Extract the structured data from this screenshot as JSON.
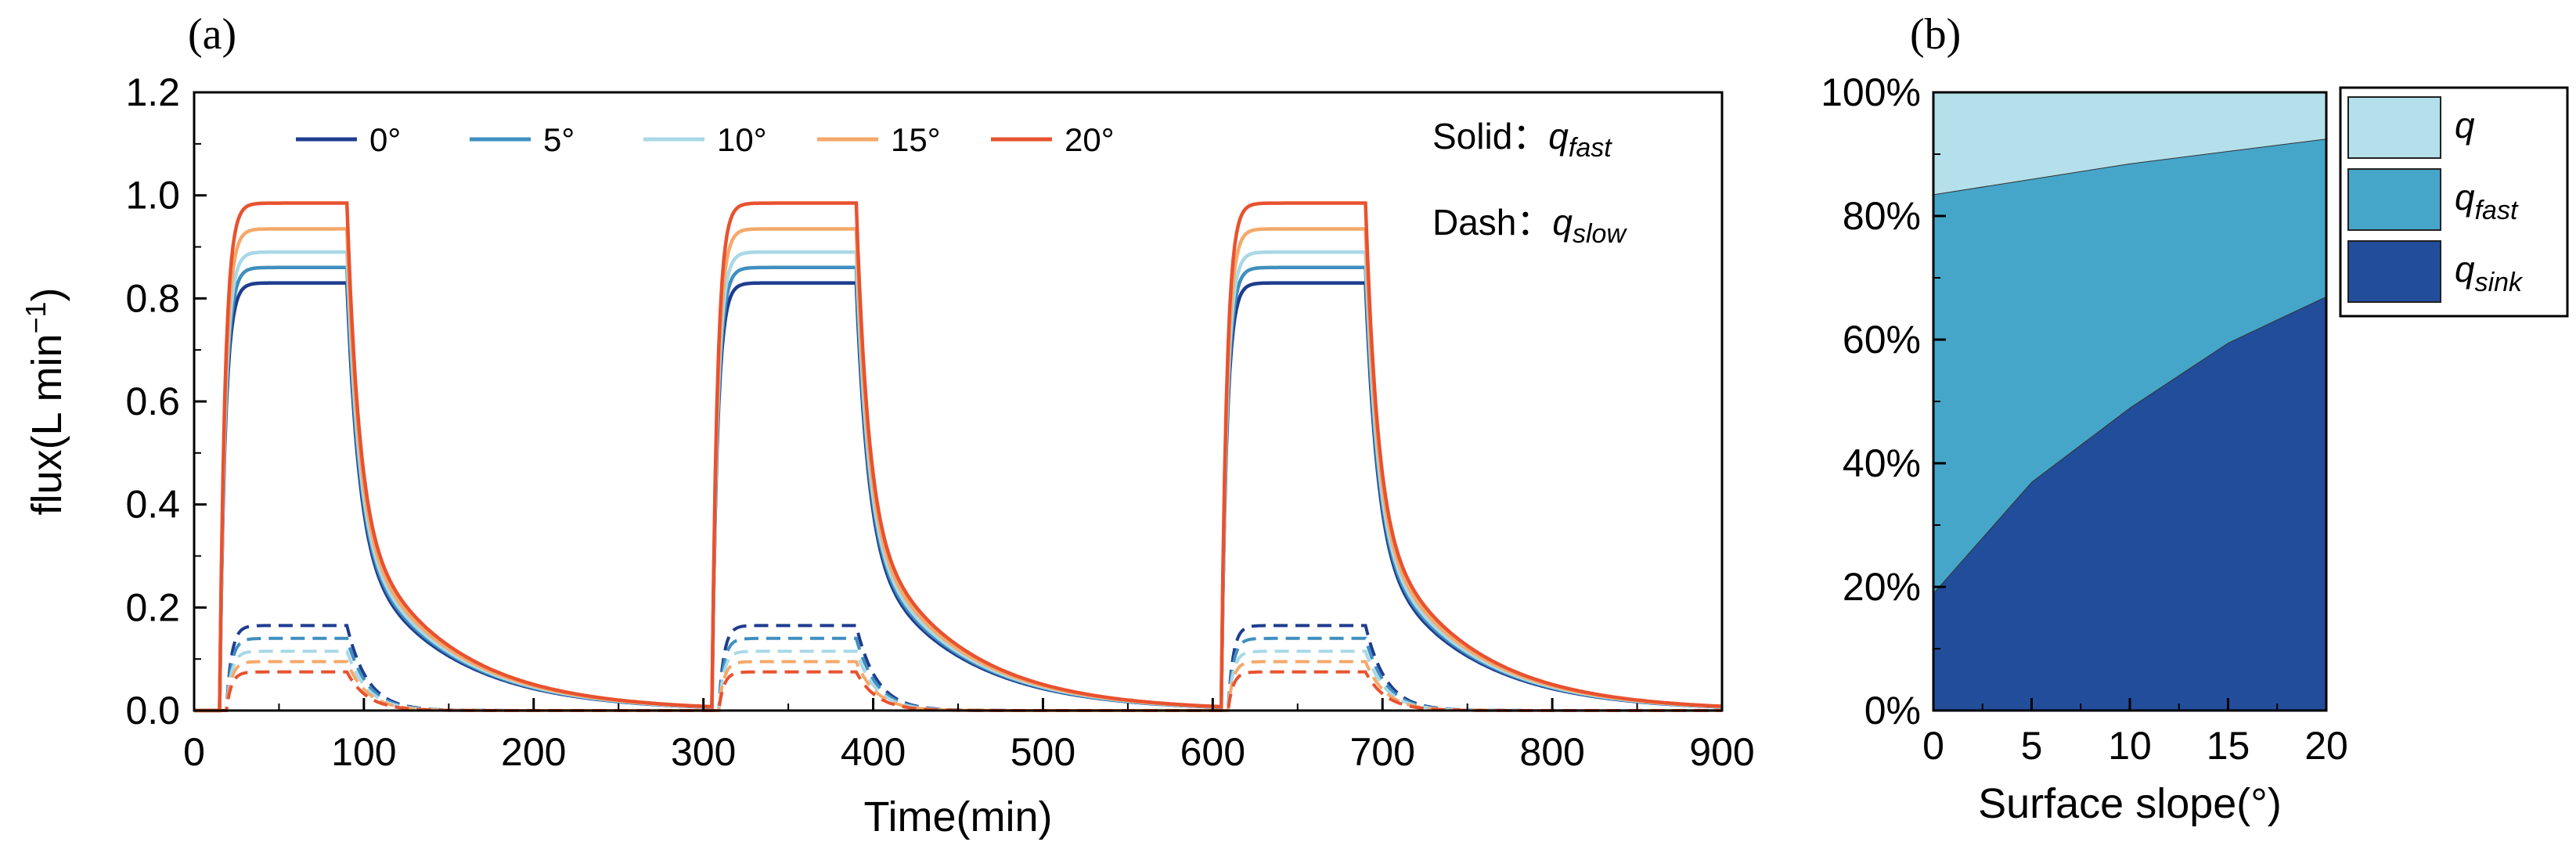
{
  "chart_data": [
    {
      "panel_label": "(a)",
      "type": "line",
      "xlabel": "Time(min)",
      "ylabel_main": "flux(L min",
      "ylabel_sup": "−1",
      "ylabel_close": ")",
      "xlim": [
        0,
        900
      ],
      "ylim": [
        0,
        1.2
      ],
      "xticks": [
        "0",
        "100",
        "200",
        "300",
        "400",
        "500",
        "600",
        "700",
        "800",
        "900"
      ],
      "yticks": [
        "0.0",
        "0.2",
        "0.4",
        "0.6",
        "0.8",
        "1.0",
        "1.2"
      ],
      "annotation": {
        "solid_prefix": "Solid：",
        "dash_prefix": "Dash：",
        "q": "q",
        "fast": "fast",
        "slow": "slow"
      },
      "rain_pulses": [
        {
          "start": 15,
          "end": 90
        },
        {
          "start": 305,
          "end": 390
        },
        {
          "start": 605,
          "end": 690
        }
      ],
      "series": [
        {
          "name": "0°",
          "color": "#1f3d8f",
          "q_fast_plateau": 0.83,
          "q_slow_plateau": 0.165
        },
        {
          "name": "5°",
          "color": "#3f8fbf",
          "q_fast_plateau": 0.86,
          "q_slow_plateau": 0.14
        },
        {
          "name": "10°",
          "color": "#a9d8e6",
          "q_fast_plateau": 0.89,
          "q_slow_plateau": 0.115
        },
        {
          "name": "15°",
          "color": "#f5a86a",
          "q_fast_plateau": 0.935,
          "q_slow_plateau": 0.095
        },
        {
          "name": "20°",
          "color": "#e8522f",
          "q_fast_plateau": 0.985,
          "q_slow_plateau": 0.075
        }
      ]
    },
    {
      "panel_label": "(b)",
      "type": "area",
      "stacked": true,
      "xlabel": "Surface slope(°)",
      "x": [
        0,
        5,
        10,
        15,
        20
      ],
      "xticks": [
        "0",
        "5",
        "10",
        "15",
        "20"
      ],
      "yticks": [
        "0%",
        "20%",
        "40%",
        "60%",
        "80%",
        "100%"
      ],
      "ylim": [
        0,
        100
      ],
      "series": [
        {
          "name": "q",
          "sub": "",
          "color": "#b3e0ea",
          "values": [
            16.5,
            14.0,
            11.5,
            9.5,
            7.5
          ]
        },
        {
          "name": "q",
          "sub": "fast",
          "color": "#45a6c9",
          "values": [
            64.5,
            49.0,
            39.5,
            31.0,
            25.5
          ]
        },
        {
          "name": "q",
          "sub": "sink",
          "color": "#224d9b",
          "values": [
            19.0,
            37.0,
            49.0,
            59.5,
            67.0
          ]
        }
      ]
    }
  ]
}
